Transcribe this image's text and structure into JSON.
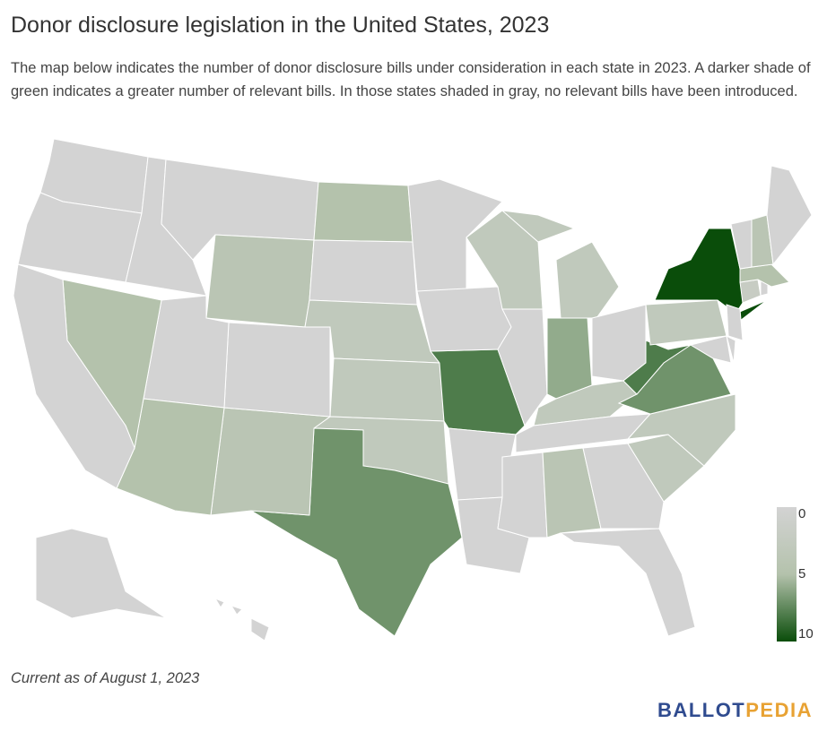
{
  "chart_data": {
    "type": "choropleth",
    "title": "Donor disclosure legislation in the United States, 2023",
    "subtitle": "The map below indicates the number of donor disclosure bills under consideration in each state in 2023. A darker shade of green indicates a greater number of relevant bills. In those states shaded in gray, no relevant bills have been introduced.",
    "values": [
      0,
      0,
      0,
      0,
      4,
      5,
      0,
      3,
      3,
      3,
      7,
      4,
      0,
      0,
      5,
      5,
      0,
      0,
      8,
      0,
      0,
      0,
      3,
      0,
      3,
      6,
      0,
      3,
      0,
      0,
      4,
      0,
      0,
      3,
      3,
      7,
      8,
      3,
      10,
      0,
      0,
      0,
      2,
      0,
      5,
      0,
      4,
      0,
      0,
      0
    ],
    "colorscale": [
      "#d3d3d3",
      "#b4c2ac",
      "#0a4d0a"
    ],
    "legend_ticks": [
      0,
      5,
      10
    ],
    "legend_position": "bottom-right",
    "footnote": "Current as of August 1, 2023",
    "logo": [
      "BALLOT",
      "PEDIA"
    ]
  }
}
